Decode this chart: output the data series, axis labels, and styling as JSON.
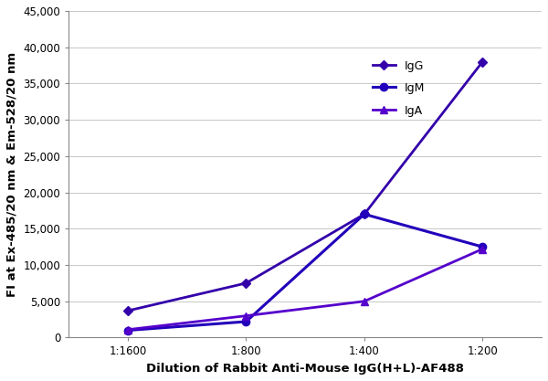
{
  "x_labels": [
    "1:1600",
    "1:800",
    "1:400",
    "1:200"
  ],
  "x_positions": [
    1,
    2,
    3,
    4
  ],
  "series": [
    {
      "name": "IgG",
      "values": [
        3700,
        7500,
        17000,
        38000
      ],
      "color": "#3300aa",
      "marker": "D",
      "marker_size": 5,
      "linewidth": 2.0
    },
    {
      "name": "IgM",
      "values": [
        1000,
        2200,
        17000,
        12500
      ],
      "color": "#2200bb",
      "marker": "o",
      "marker_size": 6,
      "linewidth": 2.2
    },
    {
      "name": "IgA",
      "values": [
        1100,
        3000,
        5000,
        12200
      ],
      "color": "#5500cc",
      "marker": "^",
      "marker_size": 6,
      "linewidth": 2.0
    }
  ],
  "xlabel": "Dilution of Rabbit Anti-Mouse IgG(H+L)-AF488",
  "ylabel": "FI at Ex-485/20 nm & Em-528/20 nm",
  "ylim": [
    0,
    45000
  ],
  "yticks": [
    0,
    5000,
    10000,
    15000,
    20000,
    25000,
    30000,
    35000,
    40000,
    45000
  ],
  "xlim": [
    0.5,
    4.5
  ],
  "background_color": "#ffffff",
  "grid_color": "#c8c8c8",
  "axis_label_fontsize": 9.5,
  "tick_fontsize": 8.5,
  "legend_fontsize": 9
}
